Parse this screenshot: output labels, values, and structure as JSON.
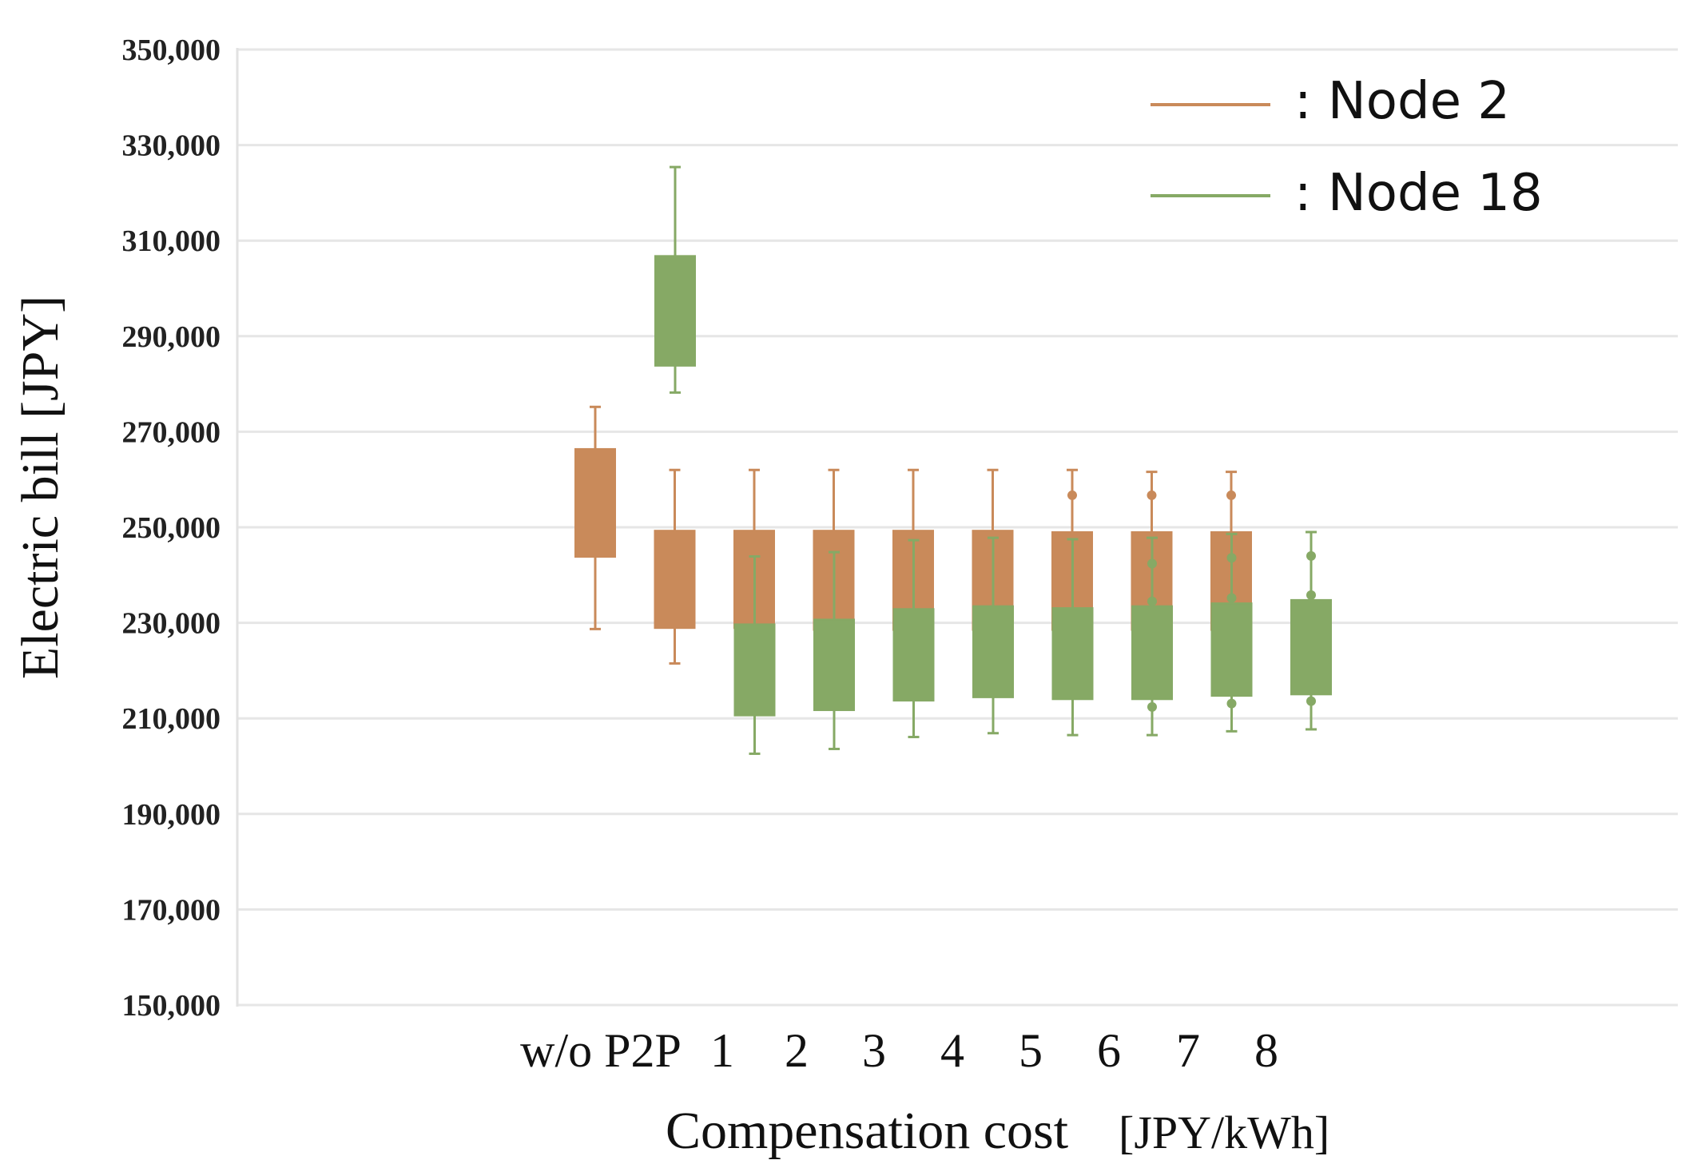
{
  "chart_data": {
    "type": "boxplot",
    "title": "",
    "xlabel": "Compensation cost",
    "xlabel_unit": "[JPY/kWh]",
    "ylabel": "Electric bill [JPY]",
    "ylim": [
      150000,
      350000
    ],
    "yticks": [
      150000,
      170000,
      190000,
      210000,
      230000,
      250000,
      270000,
      290000,
      310000,
      330000,
      350000
    ],
    "ytick_labels": [
      "150,000",
      "170,000",
      "190,000",
      "210,000",
      "230,000",
      "250,000",
      "270,000",
      "290,000",
      "310,000",
      "330,000",
      "350,000"
    ],
    "categories": [
      "w/o P2P",
      "1",
      "2",
      "3",
      "4",
      "5",
      "6",
      "7",
      "8"
    ],
    "grid": true,
    "legend_position": "top-right",
    "series": [
      {
        "name": "Node 2",
        "legend_label": ": Node 2",
        "color": "#C98A5A",
        "boxes": [
          {
            "min": 228700,
            "q1": 243800,
            "q3": 266400,
            "max": 275200,
            "outliers": []
          },
          {
            "min": 221500,
            "q1": 228900,
            "q3": 249300,
            "max": 262000,
            "outliers": []
          },
          {
            "min": 221500,
            "q1": 228900,
            "q3": 249300,
            "max": 262000,
            "outliers": []
          },
          {
            "min": 221500,
            "q1": 228500,
            "q3": 249300,
            "max": 262000,
            "outliers": []
          },
          {
            "min": 221500,
            "q1": 228500,
            "q3": 249300,
            "max": 262000,
            "outliers": []
          },
          {
            "min": 221500,
            "q1": 228500,
            "q3": 249300,
            "max": 262000,
            "outliers": []
          },
          {
            "min": 221500,
            "q1": 228500,
            "q3": 249000,
            "max": 262000,
            "outliers": [
              256700,
              227300
            ]
          },
          {
            "min": 221500,
            "q1": 228500,
            "q3": 249000,
            "max": 261600,
            "outliers": [
              256700,
              227300
            ]
          },
          {
            "min": 221500,
            "q1": 228500,
            "q3": 249000,
            "max": 261600,
            "outliers": [
              256700,
              227300
            ]
          }
        ]
      },
      {
        "name": "Node 18",
        "legend_label": ": Node 18",
        "color": "#86A965",
        "boxes": [
          {
            "min": 278200,
            "q1": 283800,
            "q3": 306800,
            "max": 325400,
            "outliers": []
          },
          {
            "min": 202600,
            "q1": 210600,
            "q3": 229700,
            "max": 243900,
            "outliers": []
          },
          {
            "min": 203600,
            "q1": 211700,
            "q3": 230700,
            "max": 244800,
            "outliers": []
          },
          {
            "min": 206100,
            "q1": 213700,
            "q3": 232900,
            "max": 247300,
            "outliers": []
          },
          {
            "min": 206900,
            "q1": 214400,
            "q3": 233500,
            "max": 247800,
            "outliers": []
          },
          {
            "min": 206500,
            "q1": 214000,
            "q3": 233100,
            "max": 247500,
            "outliers": []
          },
          {
            "min": 206500,
            "q1": 214000,
            "q3": 233500,
            "max": 247800,
            "outliers": [
              242400,
              234500,
              212400
            ]
          },
          {
            "min": 207300,
            "q1": 214700,
            "q3": 234100,
            "max": 248600,
            "outliers": [
              243600,
              235200,
              213100
            ]
          },
          {
            "min": 207700,
            "q1": 215000,
            "q3": 234800,
            "max": 249000,
            "outliers": [
              244000,
              235800,
              213600
            ]
          }
        ]
      }
    ]
  }
}
